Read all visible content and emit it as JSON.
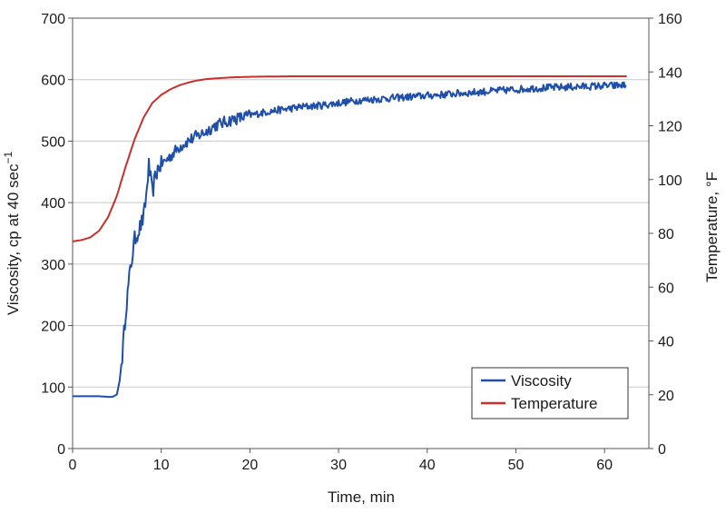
{
  "chart_data": {
    "type": "line",
    "title": "",
    "xlabel": "Time, min",
    "ylabel_left": "Viscosity, cp at 40 sec",
    "ylabel_left_superscript": "−1",
    "ylabel_right": "Temperature, °F",
    "xlim": [
      0,
      65
    ],
    "ylim_left": [
      0,
      700
    ],
    "ylim_right": [
      0,
      160
    ],
    "x_ticks": [
      "0",
      "10",
      "20",
      "30",
      "40",
      "50",
      "60"
    ],
    "y_left_ticks": [
      "0",
      "100",
      "200",
      "300",
      "400",
      "500",
      "600",
      "700"
    ],
    "y_right_ticks": [
      "0",
      "20",
      "40",
      "60",
      "80",
      "100",
      "120",
      "140",
      "160"
    ],
    "grid": "horizontal",
    "legend_position": "bottom-right",
    "colors": {
      "viscosity": "#1f4fa8",
      "temperature": "#c8302c",
      "grid": "#c8c8c8",
      "frame": "#555555"
    },
    "series": [
      {
        "name": "Viscosity",
        "axis": "left",
        "x": [
          0,
          1,
          2,
          3,
          4,
          4.5,
          5,
          5.3,
          5.6,
          6,
          6.5,
          7,
          7.3,
          7.6,
          8,
          8.3,
          8.6,
          9,
          9.3,
          9.6,
          10,
          11,
          12,
          13,
          14,
          15,
          16,
          17,
          18,
          19,
          20,
          22,
          24,
          26,
          28,
          30,
          32,
          34,
          36,
          38,
          40,
          42,
          44,
          46,
          48,
          50,
          52,
          54,
          56,
          58,
          60,
          61,
          62,
          62.5
        ],
        "y": [
          85,
          85,
          85,
          85,
          84,
          84,
          88,
          110,
          150,
          225,
          290,
          340,
          350,
          360,
          375,
          410,
          460,
          415,
          440,
          455,
          462,
          475,
          490,
          500,
          508,
          515,
          525,
          530,
          535,
          538,
          542,
          548,
          552,
          556,
          558,
          562,
          566,
          568,
          570,
          572,
          574,
          576,
          578,
          580,
          582,
          584,
          586,
          587,
          588,
          589,
          590,
          590,
          591,
          590
        ]
      },
      {
        "name": "Temperature",
        "axis": "right",
        "x": [
          0,
          1,
          2,
          3,
          4,
          5,
          6,
          7,
          8,
          9,
          10,
          11,
          12,
          13,
          14,
          15,
          16,
          17,
          18,
          19,
          20,
          22,
          25,
          30,
          35,
          40,
          45,
          50,
          55,
          60,
          62.5
        ],
        "y": [
          77,
          77.5,
          78.5,
          81,
          86,
          94,
          105,
          115,
          123,
          128.5,
          131.5,
          133.5,
          135,
          136,
          136.8,
          137.3,
          137.6,
          137.8,
          138,
          138.1,
          138.2,
          138.3,
          138.4,
          138.4,
          138.4,
          138.4,
          138.4,
          138.4,
          138.4,
          138.4,
          138.4
        ]
      }
    ]
  }
}
